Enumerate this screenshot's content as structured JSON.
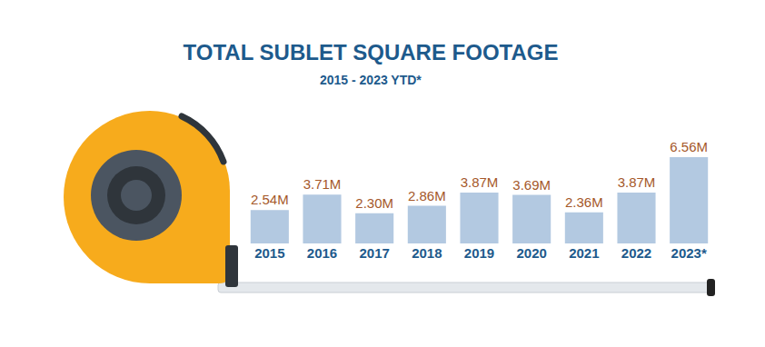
{
  "chart_data": {
    "type": "bar",
    "title": "TOTAL SUBLET SQUARE FOOTAGE",
    "subtitle": "2015 - 2023 YTD*",
    "categories": [
      "2015",
      "2016",
      "2017",
      "2018",
      "2019",
      "2020",
      "2021",
      "2022",
      "2023*"
    ],
    "values": [
      2.54,
      3.71,
      2.3,
      2.86,
      3.87,
      3.69,
      2.36,
      3.87,
      6.56
    ],
    "value_labels": [
      "2.54M",
      "3.71M",
      "2.30M",
      "2.86M",
      "3.87M",
      "3.69M",
      "2.36M",
      "3.87M",
      "6.56M"
    ],
    "color": "#b3c9e1",
    "data_labels": true,
    "tick_labels": "x",
    "grid": false
  }
}
